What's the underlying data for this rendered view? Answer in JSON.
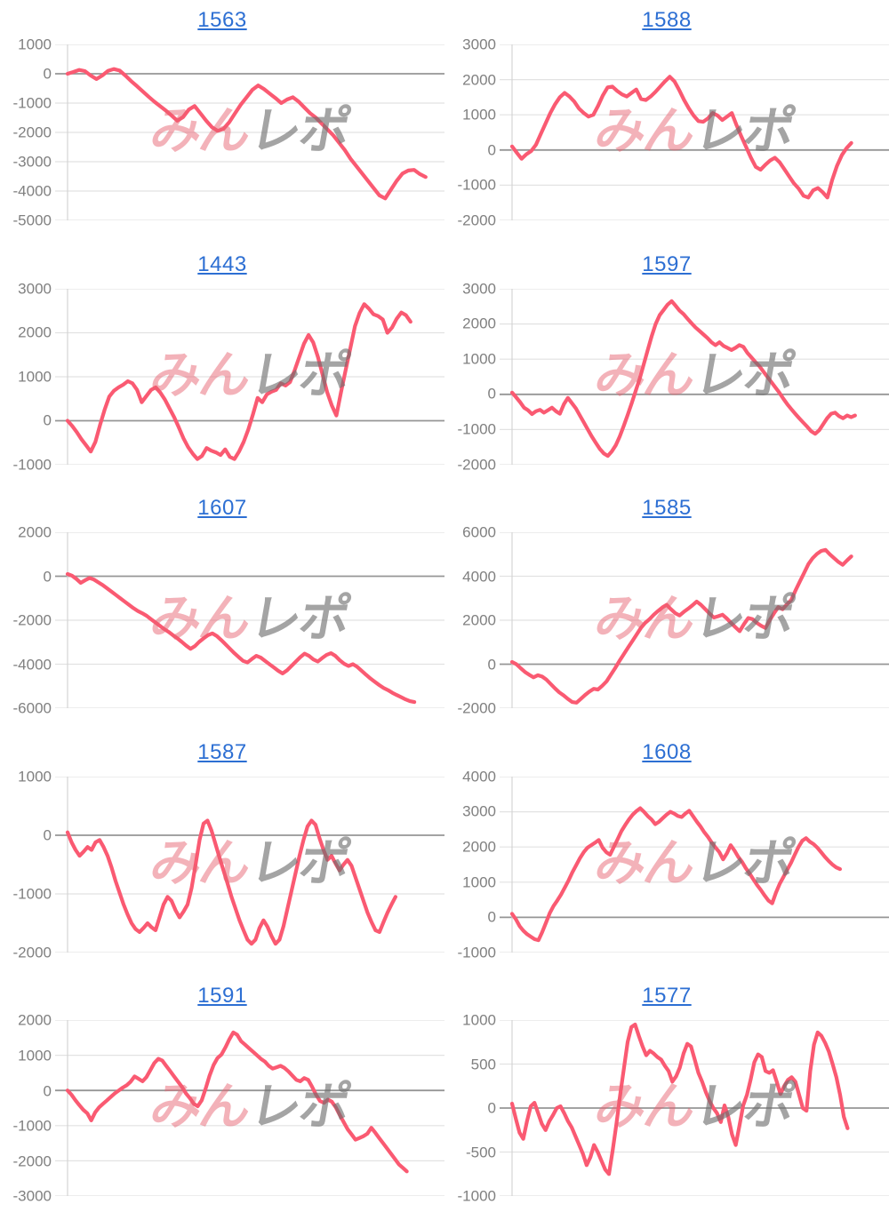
{
  "page": {
    "background": "#FFFFFF"
  },
  "colors": {
    "line": "#FA5A72",
    "title": "#2D6FD3",
    "label": "#808080",
    "grid": "#E2E2E2",
    "zero_line": "#969696",
    "axis": "#D4D4D4",
    "watermark_pink": "#E8606F",
    "watermark_gray": "#6E6E6E"
  },
  "watermark": {
    "pink_text": "みん",
    "gray_text": "レポ"
  },
  "chart_data": [
    {
      "type": "line",
      "title": "1563",
      "xlabel": "",
      "ylabel": "",
      "ylim": [
        -5000,
        1000
      ],
      "yticks": [
        1000,
        0,
        -1000,
        -2000,
        -3000,
        -4000,
        -5000
      ],
      "grid": true,
      "x_end": 0.95,
      "values": [
        0,
        60,
        130,
        90,
        -60,
        -180,
        -60,
        100,
        160,
        110,
        -60,
        -250,
        -420,
        -600,
        -780,
        -950,
        -1100,
        -1250,
        -1420,
        -1600,
        -1480,
        -1220,
        -1100,
        -1350,
        -1600,
        -1820,
        -1950,
        -1880,
        -1650,
        -1350,
        -1050,
        -800,
        -550,
        -400,
        -520,
        -680,
        -830,
        -1000,
        -880,
        -800,
        -950,
        -1150,
        -1350,
        -1500,
        -1700,
        -1900,
        -2100,
        -2350,
        -2600,
        -2900,
        -3150,
        -3400,
        -3650,
        -3900,
        -4150,
        -4250,
        -3950,
        -3650,
        -3400,
        -3300,
        -3280,
        -3420,
        -3520
      ]
    },
    {
      "type": "line",
      "title": "1588",
      "xlabel": "",
      "ylabel": "",
      "ylim": [
        -2000,
        3000
      ],
      "yticks": [
        3000,
        2000,
        1000,
        0,
        -1000,
        -2000
      ],
      "grid": true,
      "x_end": 0.9,
      "values": [
        100,
        -80,
        -250,
        -120,
        -30,
        150,
        450,
        750,
        1050,
        1300,
        1500,
        1620,
        1520,
        1380,
        1180,
        1050,
        950,
        1000,
        1250,
        1550,
        1780,
        1800,
        1680,
        1580,
        1520,
        1620,
        1720,
        1450,
        1420,
        1520,
        1650,
        1800,
        1950,
        2080,
        1950,
        1700,
        1420,
        1180,
        980,
        820,
        800,
        900,
        1050,
        980,
        850,
        950,
        1050,
        700,
        380,
        80,
        -220,
        -480,
        -560,
        -420,
        -300,
        -220,
        -350,
        -550,
        -750,
        -950,
        -1100,
        -1300,
        -1350,
        -1150,
        -1080,
        -1200,
        -1350,
        -850,
        -450,
        -150,
        50,
        200
      ]
    },
    {
      "type": "line",
      "title": "1443",
      "xlabel": "",
      "ylabel": "",
      "ylim": [
        -1000,
        3000
      ],
      "yticks": [
        3000,
        2000,
        1000,
        0,
        -1000
      ],
      "grid": true,
      "x_end": 0.91,
      "values": [
        0,
        -120,
        -260,
        -420,
        -560,
        -700,
        -480,
        -100,
        250,
        550,
        680,
        760,
        820,
        900,
        850,
        700,
        420,
        560,
        700,
        760,
        640,
        480,
        280,
        80,
        -150,
        -400,
        -600,
        -750,
        -870,
        -800,
        -620,
        -680,
        -720,
        -780,
        -650,
        -820,
        -870,
        -700,
        -480,
        -200,
        150,
        520,
        420,
        600,
        660,
        700,
        850,
        800,
        880,
        1150,
        1450,
        1750,
        1950,
        1780,
        1450,
        1050,
        650,
        350,
        120,
        650,
        1150,
        1650,
        2150,
        2450,
        2650,
        2550,
        2420,
        2380,
        2300,
        2000,
        2120,
        2320,
        2460,
        2400,
        2250
      ]
    },
    {
      "type": "line",
      "title": "1597",
      "xlabel": "",
      "ylabel": "",
      "ylim": [
        -2000,
        3000
      ],
      "yticks": [
        3000,
        2000,
        1000,
        0,
        -1000,
        -2000
      ],
      "grid": true,
      "x_end": 0.91,
      "values": [
        50,
        -80,
        -220,
        -380,
        -450,
        -560,
        -480,
        -440,
        -520,
        -450,
        -380,
        -480,
        -550,
        -280,
        -100,
        -250,
        -400,
        -600,
        -800,
        -1000,
        -1200,
        -1380,
        -1550,
        -1680,
        -1750,
        -1620,
        -1450,
        -1200,
        -900,
        -580,
        -250,
        100,
        450,
        850,
        1250,
        1650,
        2000,
        2250,
        2400,
        2550,
        2650,
        2520,
        2380,
        2280,
        2150,
        2020,
        1900,
        1800,
        1700,
        1600,
        1480,
        1400,
        1480,
        1380,
        1320,
        1260,
        1320,
        1400,
        1350,
        1180,
        1050,
        920,
        800,
        650,
        500,
        350,
        200,
        50,
        -120,
        -280,
        -420,
        -550,
        -680,
        -800,
        -920,
        -1050,
        -1120,
        -1020,
        -850,
        -680,
        -550,
        -520,
        -620,
        -680,
        -600,
        -650,
        -600
      ]
    },
    {
      "type": "line",
      "title": "1607",
      "xlabel": "",
      "ylabel": "",
      "ylim": [
        -6000,
        2000
      ],
      "yticks": [
        2000,
        0,
        -2000,
        -4000,
        -6000
      ],
      "grid": true,
      "x_end": 0.92,
      "values": [
        100,
        30,
        -120,
        -300,
        -180,
        -80,
        -150,
        -280,
        -400,
        -550,
        -700,
        -850,
        -1000,
        -1150,
        -1300,
        -1450,
        -1580,
        -1680,
        -1800,
        -1950,
        -2100,
        -2250,
        -2400,
        -2530,
        -2680,
        -2820,
        -2980,
        -3150,
        -3300,
        -3180,
        -2980,
        -2820,
        -2680,
        -2600,
        -2720,
        -2900,
        -3100,
        -3300,
        -3500,
        -3680,
        -3850,
        -3920,
        -3760,
        -3620,
        -3700,
        -3850,
        -4000,
        -4150,
        -4300,
        -4420,
        -4280,
        -4080,
        -3880,
        -3680,
        -3520,
        -3620,
        -3780,
        -3880,
        -3720,
        -3580,
        -3500,
        -3620,
        -3820,
        -3980,
        -4080,
        -4000,
        -4120,
        -4300,
        -4480,
        -4650,
        -4800,
        -4950,
        -5080,
        -5180,
        -5300,
        -5400,
        -5500,
        -5600,
        -5680,
        -5720
      ]
    },
    {
      "type": "line",
      "title": "1585",
      "xlabel": "",
      "ylabel": "",
      "ylim": [
        -2000,
        6000
      ],
      "yticks": [
        6000,
        4000,
        2000,
        0,
        -2000
      ],
      "grid": true,
      "x_end": 0.9,
      "values": [
        100,
        0,
        -180,
        -350,
        -480,
        -600,
        -500,
        -560,
        -700,
        -900,
        -1100,
        -1280,
        -1420,
        -1580,
        -1720,
        -1750,
        -1580,
        -1400,
        -1250,
        -1120,
        -1150,
        -980,
        -780,
        -480,
        -180,
        150,
        450,
        750,
        1050,
        1350,
        1650,
        1880,
        2050,
        2250,
        2420,
        2580,
        2700,
        2500,
        2320,
        2220,
        2380,
        2520,
        2680,
        2850,
        2700,
        2500,
        2300,
        2120,
        2180,
        2250,
        2080,
        1880,
        1680,
        1500,
        1820,
        2100,
        2050,
        1880,
        1750,
        1650,
        2000,
        2320,
        2600,
        2500,
        2720,
        2920,
        3350,
        3750,
        4150,
        4550,
        4820,
        5020,
        5150,
        5200,
        5000,
        4820,
        4650,
        4520,
        4720,
        4900
      ]
    },
    {
      "type": "line",
      "title": "1587",
      "xlabel": "",
      "ylabel": "",
      "ylim": [
        -2000,
        1000
      ],
      "yticks": [
        1000,
        0,
        -1000,
        -2000
      ],
      "grid": true,
      "x_end": 0.87,
      "values": [
        50,
        -120,
        -250,
        -350,
        -280,
        -200,
        -250,
        -120,
        -80,
        -200,
        -350,
        -550,
        -780,
        -980,
        -1180,
        -1350,
        -1500,
        -1600,
        -1650,
        -1580,
        -1500,
        -1570,
        -1620,
        -1400,
        -1180,
        -1050,
        -1120,
        -1280,
        -1400,
        -1300,
        -1180,
        -900,
        -500,
        -80,
        200,
        250,
        80,
        -150,
        -380,
        -600,
        -820,
        -1050,
        -1250,
        -1450,
        -1620,
        -1780,
        -1850,
        -1780,
        -1580,
        -1450,
        -1560,
        -1720,
        -1850,
        -1780,
        -1550,
        -1250,
        -950,
        -650,
        -350,
        -80,
        150,
        250,
        180,
        -50,
        -250,
        -420,
        -350,
        -480,
        -600,
        -500,
        -420,
        -520,
        -720,
        -920,
        -1120,
        -1320,
        -1480,
        -1620,
        -1650,
        -1480,
        -1320,
        -1180,
        -1050
      ]
    },
    {
      "type": "line",
      "title": "1608",
      "xlabel": "",
      "ylabel": "",
      "ylim": [
        -1000,
        4000
      ],
      "yticks": [
        4000,
        3000,
        2000,
        1000,
        0,
        -1000
      ],
      "grid": true,
      "x_end": 0.87,
      "values": [
        100,
        -50,
        -250,
        -380,
        -480,
        -550,
        -620,
        -650,
        -420,
        -150,
        120,
        320,
        480,
        650,
        850,
        1050,
        1280,
        1480,
        1680,
        1850,
        1980,
        2050,
        2120,
        2200,
        1980,
        1850,
        1780,
        2000,
        2220,
        2450,
        2620,
        2780,
        2920,
        3020,
        3100,
        3000,
        2880,
        2780,
        2650,
        2720,
        2820,
        2920,
        3000,
        2950,
        2880,
        2850,
        2950,
        3030,
        2880,
        2720,
        2580,
        2420,
        2280,
        2120,
        1980,
        1850,
        1650,
        1820,
        2050,
        1900,
        1720,
        1580,
        1400,
        1250,
        1080,
        920,
        780,
        620,
        480,
        400,
        700,
        950,
        1150,
        1350,
        1550,
        1780,
        2000,
        2180,
        2250,
        2150,
        2080,
        1980,
        1850,
        1720,
        1600,
        1500,
        1420,
        1370
      ]
    },
    {
      "type": "line",
      "title": "1591",
      "xlabel": "",
      "ylabel": "",
      "ylim": [
        -3000,
        2000
      ],
      "yticks": [
        2000,
        1000,
        0,
        -1000,
        -2000,
        -3000
      ],
      "grid": true,
      "x_end": 0.9,
      "values": [
        0,
        -120,
        -280,
        -420,
        -550,
        -650,
        -850,
        -620,
        -480,
        -380,
        -280,
        -180,
        -80,
        0,
        80,
        150,
        250,
        400,
        330,
        260,
        380,
        580,
        780,
        900,
        850,
        700,
        550,
        400,
        250,
        100,
        -80,
        -220,
        -380,
        -450,
        -280,
        50,
        420,
        720,
        920,
        1020,
        1220,
        1450,
        1650,
        1580,
        1400,
        1300,
        1200,
        1100,
        1000,
        900,
        820,
        700,
        620,
        660,
        700,
        640,
        540,
        420,
        300,
        260,
        350,
        300,
        100,
        -120,
        -300,
        -350,
        -260,
        -320,
        -480,
        -700,
        -900,
        -1100,
        -1250,
        -1400,
        -1350,
        -1300,
        -1230,
        -1060,
        -1200,
        -1350,
        -1500,
        -1650,
        -1800,
        -1950,
        -2100,
        -2200,
        -2300
      ]
    },
    {
      "type": "line",
      "title": "1577",
      "xlabel": "",
      "ylabel": "",
      "ylim": [
        -1000,
        1000
      ],
      "yticks": [
        1000,
        500,
        0,
        -500,
        -1000
      ],
      "grid": true,
      "x_end": 0.89,
      "values": [
        50,
        -120,
        -280,
        -350,
        -150,
        20,
        60,
        -60,
        -180,
        -250,
        -150,
        -80,
        0,
        20,
        -60,
        -150,
        -220,
        -320,
        -420,
        -520,
        -650,
        -560,
        -420,
        -500,
        -600,
        -700,
        -750,
        -480,
        -180,
        150,
        450,
        750,
        920,
        950,
        820,
        700,
        600,
        650,
        620,
        580,
        550,
        480,
        420,
        300,
        360,
        460,
        620,
        730,
        700,
        550,
        400,
        300,
        180,
        80,
        0,
        -60,
        -160,
        30,
        -100,
        -300,
        -420,
        -200,
        30,
        150,
        320,
        520,
        610,
        580,
        420,
        400,
        430,
        300,
        160,
        250,
        320,
        350,
        300,
        150,
        0,
        -30,
        420,
        720,
        860,
        820,
        740,
        640,
        500,
        350,
        150,
        -100,
        -230
      ]
    }
  ]
}
